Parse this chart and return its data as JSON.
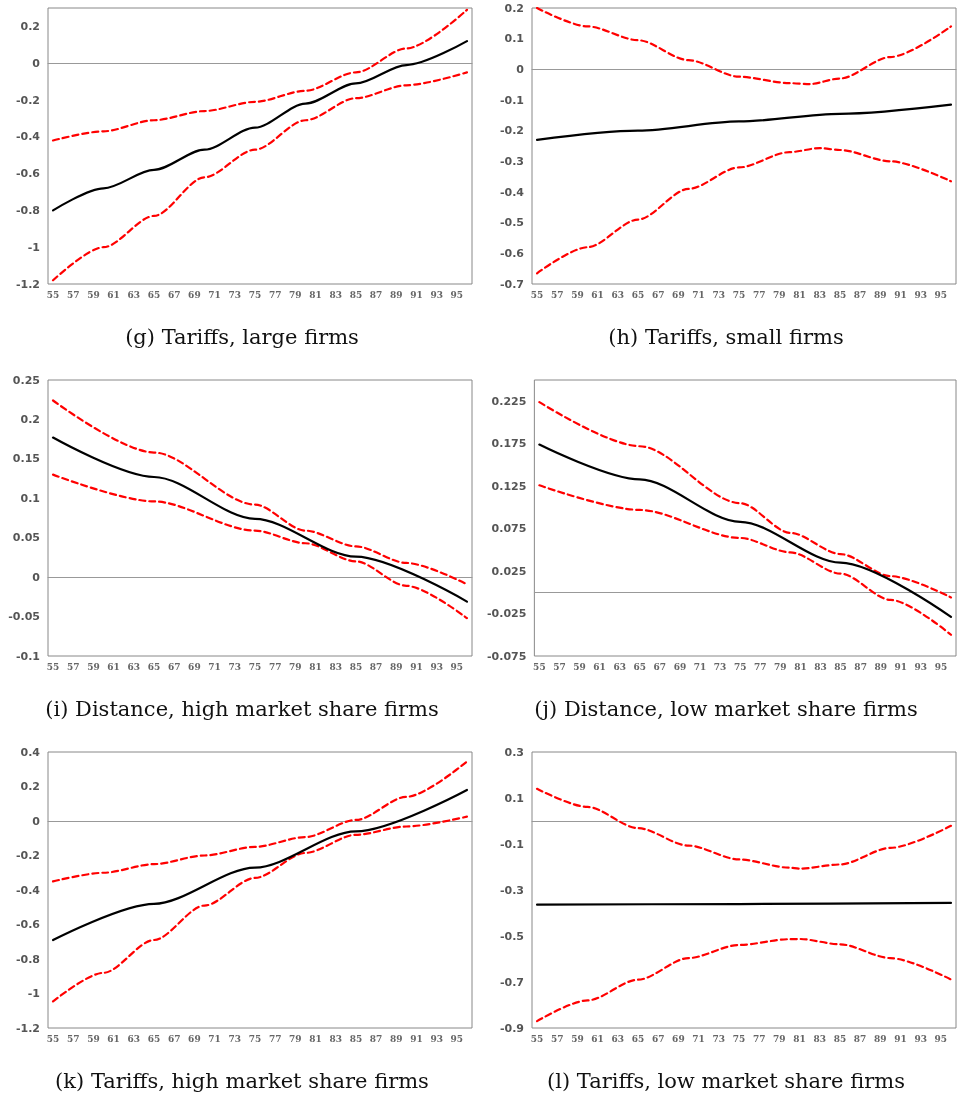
{
  "chart_data": [
    {
      "type": "line",
      "title": "(g) Tariffs, large firms",
      "marker": "none",
      "xlim": [
        54.5,
        96.5
      ],
      "xticks": [
        55,
        57,
        59,
        61,
        63,
        65,
        67,
        69,
        71,
        73,
        75,
        77,
        79,
        81,
        83,
        85,
        87,
        89,
        91,
        93,
        95
      ],
      "ylim": [
        -1.2,
        0.3
      ],
      "yticks": [
        -1.2,
        -1,
        -0.8,
        -0.6,
        -0.4,
        -0.2,
        0,
        0.2
      ],
      "series": [
        {
          "color": "#000000",
          "line_style": "solid",
          "x": [
            55,
            60,
            65,
            70,
            75,
            80,
            85,
            90,
            96
          ],
          "values": [
            -0.8,
            -0.68,
            -0.58,
            -0.47,
            -0.35,
            -0.22,
            -0.11,
            -0.01,
            0.12
          ]
        },
        {
          "color": "#ff0000",
          "line_style": "dashed",
          "x": [
            55,
            60,
            65,
            70,
            75,
            80,
            85,
            90,
            96
          ],
          "values": [
            -0.42,
            -0.37,
            -0.31,
            -0.26,
            -0.21,
            -0.15,
            -0.05,
            0.08,
            0.29
          ]
        },
        {
          "color": "#ff0000",
          "line_style": "dashed",
          "x": [
            55,
            60,
            65,
            70,
            75,
            80,
            85,
            90,
            96
          ],
          "values": [
            -1.18,
            -1.0,
            -0.83,
            -0.62,
            -0.47,
            -0.31,
            -0.19,
            -0.12,
            -0.05
          ]
        }
      ]
    },
    {
      "type": "line",
      "title": "(h) Tariffs, small firms",
      "marker": "none",
      "xlim": [
        54.5,
        96.5
      ],
      "xticks": [
        55,
        57,
        59,
        61,
        63,
        65,
        67,
        69,
        71,
        73,
        75,
        77,
        79,
        81,
        83,
        85,
        87,
        89,
        91,
        93,
        95
      ],
      "ylim": [
        -0.7,
        0.2
      ],
      "yticks": [
        -0.7,
        -0.6,
        -0.5,
        -0.4,
        -0.3,
        -0.2,
        -0.1,
        0,
        0.1,
        0.2
      ],
      "series": [
        {
          "color": "#000000",
          "line_style": "solid",
          "x": [
            55,
            65,
            75,
            85,
            96
          ],
          "values": [
            -0.23,
            -0.2,
            -0.17,
            -0.145,
            -0.115
          ]
        },
        {
          "color": "#ff0000",
          "line_style": "dashed",
          "x": [
            55,
            60,
            65,
            70,
            75,
            80,
            82,
            85,
            90,
            96
          ],
          "values": [
            0.2,
            0.14,
            0.095,
            0.03,
            -0.024,
            -0.045,
            -0.048,
            -0.03,
            0.04,
            0.14
          ]
        },
        {
          "color": "#ff0000",
          "line_style": "dashed",
          "x": [
            55,
            60,
            65,
            70,
            75,
            80,
            83,
            85,
            90,
            96
          ],
          "values": [
            -0.665,
            -0.58,
            -0.49,
            -0.39,
            -0.32,
            -0.27,
            -0.257,
            -0.263,
            -0.3,
            -0.365
          ]
        }
      ]
    },
    {
      "type": "line",
      "title": "(i) Distance, high market share firms",
      "marker": "none",
      "xlim": [
        54.5,
        96.5
      ],
      "xticks": [
        55,
        57,
        59,
        61,
        63,
        65,
        67,
        69,
        71,
        73,
        75,
        77,
        79,
        81,
        83,
        85,
        87,
        89,
        91,
        93,
        95
      ],
      "ylim": [
        -0.1,
        0.25
      ],
      "yticks": [
        -0.1,
        -0.05,
        0,
        0.05,
        0.1,
        0.15,
        0.2,
        0.25
      ],
      "series": [
        {
          "color": "#000000",
          "line_style": "solid",
          "x": [
            55,
            65,
            75,
            85,
            96
          ],
          "values": [
            0.177,
            0.127,
            0.074,
            0.026,
            -0.031
          ]
        },
        {
          "color": "#ff0000",
          "line_style": "dashed",
          "x": [
            55,
            65,
            75,
            80,
            85,
            90,
            96
          ],
          "values": [
            0.224,
            0.158,
            0.092,
            0.059,
            0.039,
            0.018,
            -0.009
          ]
        },
        {
          "color": "#ff0000",
          "line_style": "dashed",
          "x": [
            55,
            65,
            75,
            80,
            85,
            90,
            96
          ],
          "values": [
            0.13,
            0.096,
            0.059,
            0.043,
            0.02,
            -0.011,
            -0.052
          ]
        }
      ]
    },
    {
      "type": "line",
      "title": "(j) Distance, low market share firms",
      "marker": "none",
      "xlim": [
        54.5,
        96.5
      ],
      "xticks": [
        55,
        57,
        59,
        61,
        63,
        65,
        67,
        69,
        71,
        73,
        75,
        77,
        79,
        81,
        83,
        85,
        87,
        89,
        91,
        93,
        95
      ],
      "ylim": [
        -0.075,
        0.25
      ],
      "yticks": [
        -0.075,
        -0.025,
        0.025,
        0.075,
        0.125,
        0.175,
        0.225
      ],
      "series": [
        {
          "color": "#000000",
          "line_style": "solid",
          "x": [
            55,
            65,
            75,
            85,
            96
          ],
          "values": [
            0.174,
            0.133,
            0.083,
            0.035,
            -0.029
          ]
        },
        {
          "color": "#ff0000",
          "line_style": "dashed",
          "x": [
            55,
            65,
            75,
            80,
            85,
            90,
            96
          ],
          "values": [
            0.224,
            0.172,
            0.105,
            0.07,
            0.045,
            0.019,
            -0.006
          ]
        },
        {
          "color": "#ff0000",
          "line_style": "dashed",
          "x": [
            55,
            65,
            75,
            80,
            85,
            90,
            96
          ],
          "values": [
            0.126,
            0.097,
            0.064,
            0.047,
            0.022,
            -0.009,
            -0.05
          ]
        }
      ]
    },
    {
      "type": "line",
      "title": "(k) Tariffs, high market share firms",
      "marker": "none",
      "xlim": [
        54.5,
        96.5
      ],
      "xticks": [
        55,
        57,
        59,
        61,
        63,
        65,
        67,
        69,
        71,
        73,
        75,
        77,
        79,
        81,
        83,
        85,
        87,
        89,
        91,
        93,
        95
      ],
      "ylim": [
        -1.2,
        0.4
      ],
      "yticks": [
        -1.2,
        -1,
        -0.8,
        -0.6,
        -0.4,
        -0.2,
        0,
        0.2,
        0.4
      ],
      "series": [
        {
          "color": "#000000",
          "line_style": "solid",
          "x": [
            55,
            65,
            75,
            85,
            96
          ],
          "values": [
            -0.69,
            -0.48,
            -0.27,
            -0.06,
            0.18
          ]
        },
        {
          "color": "#ff0000",
          "line_style": "dashed",
          "x": [
            55,
            60,
            65,
            70,
            75,
            80,
            85,
            90,
            96
          ],
          "values": [
            -0.35,
            -0.3,
            -0.25,
            -0.2,
            -0.15,
            -0.093,
            0.006,
            0.14,
            0.345
          ]
        },
        {
          "color": "#ff0000",
          "line_style": "dashed",
          "x": [
            55,
            60,
            65,
            70,
            75,
            80,
            85,
            90,
            96
          ],
          "values": [
            -1.046,
            -0.88,
            -0.69,
            -0.49,
            -0.33,
            -0.185,
            -0.08,
            -0.032,
            0.025
          ]
        }
      ]
    },
    {
      "type": "line",
      "title": "(l) Tariffs, low market share firms",
      "marker": "none",
      "xlim": [
        54.5,
        96.5
      ],
      "xticks": [
        55,
        57,
        59,
        61,
        63,
        65,
        67,
        69,
        71,
        73,
        75,
        77,
        79,
        81,
        83,
        85,
        87,
        89,
        91,
        93,
        95
      ],
      "ylim": [
        -0.9,
        0.3
      ],
      "yticks": [
        -0.9,
        -0.7,
        -0.5,
        -0.3,
        -0.1,
        0.1,
        0.3
      ],
      "series": [
        {
          "color": "#000000",
          "line_style": "solid",
          "x": [
            55,
            75,
            96
          ],
          "values": [
            -0.364,
            -0.361,
            -0.356
          ]
        },
        {
          "color": "#ff0000",
          "line_style": "dashed",
          "x": [
            55,
            60,
            65,
            70,
            75,
            80,
            81,
            85,
            90,
            96
          ],
          "values": [
            0.14,
            0.061,
            -0.031,
            -0.107,
            -0.167,
            -0.203,
            -0.207,
            -0.189,
            -0.117,
            -0.021
          ]
        },
        {
          "color": "#ff0000",
          "line_style": "dashed",
          "x": [
            55,
            60,
            65,
            70,
            75,
            80,
            81,
            85,
            90,
            96
          ],
          "values": [
            -0.87,
            -0.78,
            -0.69,
            -0.596,
            -0.539,
            -0.514,
            -0.513,
            -0.536,
            -0.596,
            -0.689
          ]
        }
      ]
    }
  ]
}
